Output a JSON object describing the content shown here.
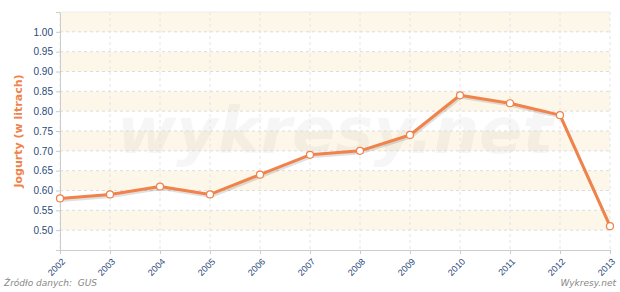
{
  "chart_data": {
    "type": "line",
    "y_label": "Jogurty (w litrach)",
    "source": "Źródło danych:  GUS",
    "credit": "Wykresy.net",
    "watermark": "wykresy.net",
    "categories": [
      "2002",
      "2003",
      "2004",
      "2005",
      "2006",
      "2007",
      "2008",
      "2009",
      "2010",
      "2011",
      "2012",
      "2013"
    ],
    "values": [
      0.58,
      0.59,
      0.61,
      0.59,
      0.64,
      0.69,
      0.7,
      0.74,
      0.84,
      0.82,
      0.79,
      0.51
    ],
    "color": "#f0824a",
    "marker": "circle",
    "ylim": [
      0.45,
      1.05
    ],
    "yticks": [
      {
        "value": 0.5,
        "label": "0.50"
      },
      {
        "value": 0.55,
        "label": "0.55"
      },
      {
        "value": 0.6,
        "label": "0.60"
      },
      {
        "value": 0.65,
        "label": "0.65"
      },
      {
        "value": 0.7,
        "label": "0.70"
      },
      {
        "value": 0.75,
        "label": "0.75"
      },
      {
        "value": 0.8,
        "label": "0.80"
      },
      {
        "value": 0.85,
        "label": "0.85"
      },
      {
        "value": 0.9,
        "label": "0.90"
      },
      {
        "value": 0.95,
        "label": "0.95"
      },
      {
        "value": 1.0,
        "label": "1.00"
      }
    ],
    "grid": true
  }
}
